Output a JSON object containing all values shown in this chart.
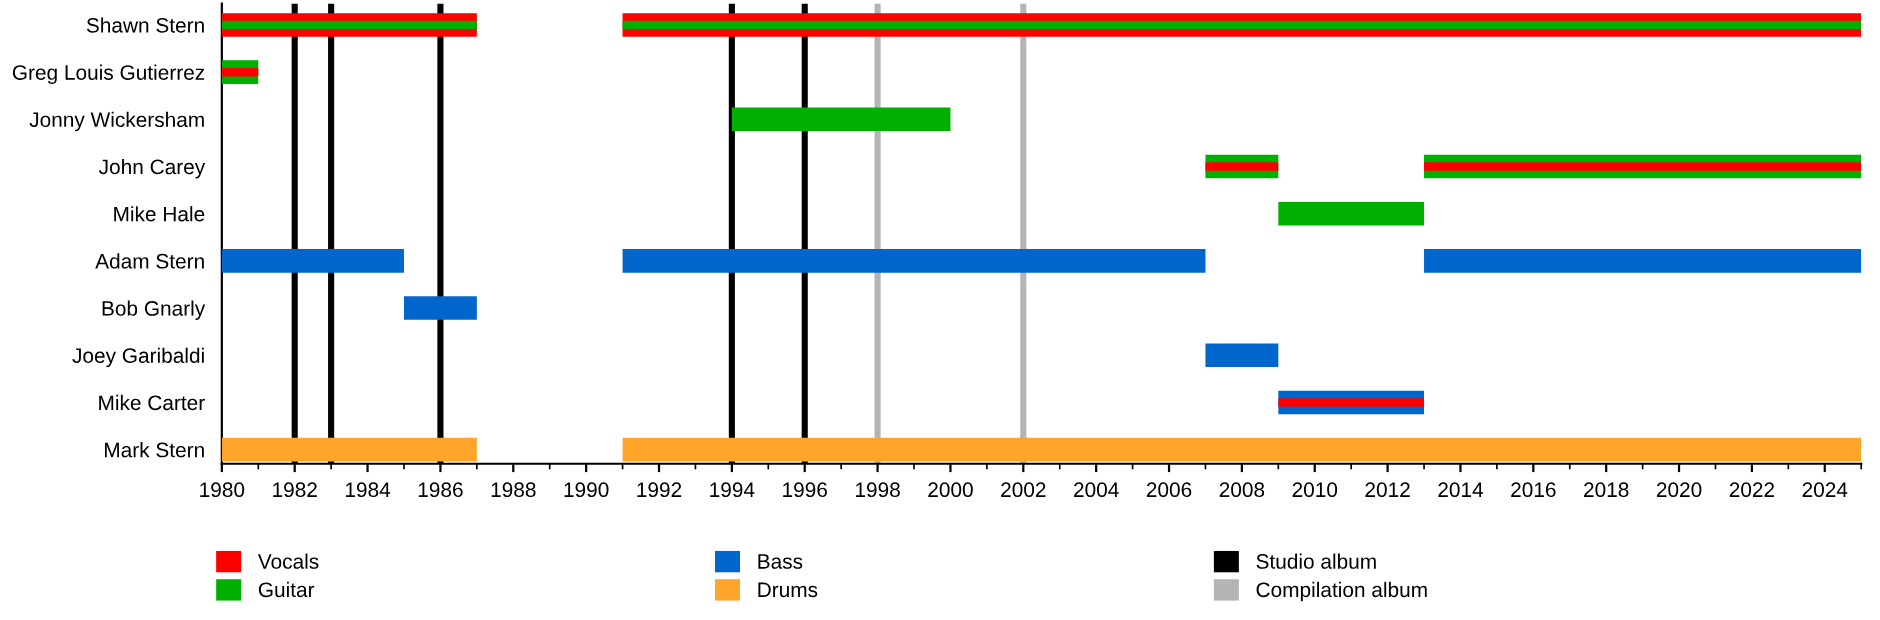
{
  "chart_data": {
    "type": "bar",
    "orientation": "horizontal",
    "categories": [
      "Shawn Stern",
      "Greg Louis Gutierrez",
      "Jonny Wickersham",
      "John Carey",
      "Mike Hale",
      "Adam Stern",
      "Bob Gnarly",
      "Joey Garibaldi",
      "Mike Carter",
      "Mark Stern"
    ],
    "series": [
      {
        "name": "Vocals",
        "color": "#ff0000",
        "base": [
          1980,
          null,
          null,
          null,
          null,
          null,
          null,
          null,
          null,
          null
        ],
        "values": [
          7,
          null,
          null,
          null,
          null,
          null,
          null,
          null,
          null,
          null
        ]
      },
      {
        "name": "Guitar",
        "color": "#00b000",
        "base": [
          1980,
          1980,
          1994,
          2007,
          2009,
          null,
          null,
          null,
          null,
          null
        ],
        "values": [
          7,
          1,
          6,
          2,
          4,
          null,
          null,
          null,
          null,
          null
        ]
      },
      {
        "color": "#ff0000",
        "base": [
          null,
          1980,
          null,
          2007,
          null,
          null,
          null,
          null,
          null,
          null
        ],
        "values": [
          null,
          1,
          null,
          2,
          null,
          null,
          null,
          null,
          null,
          null
        ]
      },
      {
        "name": "Bass",
        "color": "#0066cc",
        "base": [
          null,
          null,
          null,
          null,
          null,
          1980,
          1985,
          2007,
          2009,
          null
        ],
        "values": [
          null,
          null,
          null,
          null,
          null,
          5,
          2,
          2,
          4,
          null
        ]
      },
      {
        "color": "#ff0000",
        "base": [
          null,
          null,
          null,
          null,
          null,
          null,
          null,
          null,
          2009,
          null
        ],
        "values": [
          null,
          null,
          null,
          null,
          null,
          null,
          null,
          null,
          4,
          null
        ]
      },
      {
        "name": "Drums",
        "color": "#ffa52a",
        "base": [
          null,
          null,
          null,
          null,
          null,
          null,
          null,
          null,
          null,
          1980
        ],
        "values": [
          null,
          null,
          null,
          null,
          null,
          null,
          null,
          null,
          null,
          7
        ]
      },
      {
        "color": "#ff0000",
        "base": [
          1991,
          null,
          null,
          null,
          null,
          null,
          null,
          null,
          null,
          null
        ],
        "values": [
          34,
          null,
          null,
          null,
          null,
          null,
          null,
          null,
          null,
          null
        ]
      },
      {
        "color": "#00b000",
        "base": [
          1991,
          null,
          null,
          2013,
          null,
          null,
          null,
          null,
          null,
          null
        ],
        "values": [
          34,
          null,
          null,
          12,
          null,
          null,
          null,
          null,
          null,
          null
        ]
      },
      {
        "color": "#ff0000",
        "base": [
          null,
          null,
          null,
          2013,
          null,
          null,
          null,
          null,
          null,
          null
        ],
        "values": [
          null,
          null,
          null,
          12,
          null,
          null,
          null,
          null,
          null,
          null
        ]
      },
      {
        "color": "#0066cc",
        "base": [
          null,
          null,
          null,
          null,
          null,
          1991,
          null,
          null,
          null,
          null
        ],
        "values": [
          null,
          null,
          null,
          null,
          null,
          16,
          null,
          null,
          null,
          null
        ]
      },
      {
        "color": "#0066cc",
        "base": [
          null,
          null,
          null,
          null,
          null,
          2013,
          null,
          null,
          null,
          null
        ],
        "values": [
          null,
          null,
          null,
          null,
          null,
          12,
          null,
          null,
          null,
          null
        ]
      },
      {
        "color": "#ffa52a",
        "base": [
          null,
          null,
          null,
          null,
          null,
          null,
          null,
          null,
          null,
          1991
        ],
        "values": [
          null,
          null,
          null,
          null,
          null,
          null,
          null,
          null,
          null,
          34
        ]
      }
    ],
    "ref_lines": [
      {
        "axis": "x",
        "value": 1982,
        "label": "Studio album",
        "color": "#000000"
      },
      {
        "axis": "x",
        "value": 1983,
        "color": "#000000"
      },
      {
        "axis": "x",
        "value": 1986,
        "color": "#000000"
      },
      {
        "axis": "x",
        "value": 1994,
        "color": "#000000"
      },
      {
        "axis": "x",
        "value": 1996,
        "color": "#000000"
      },
      {
        "axis": "x",
        "value": 1998,
        "label": "Compilation album",
        "color": "#b4b4b4"
      },
      {
        "axis": "x",
        "value": 2002,
        "color": "#b4b4b4"
      }
    ],
    "xlim": [
      1980,
      2025
    ],
    "xticks": [
      1980,
      1982,
      1984,
      1986,
      1988,
      1990,
      1992,
      1994,
      1996,
      1998,
      2000,
      2002,
      2004,
      2006,
      2008,
      2010,
      2012,
      2014,
      2016,
      2018,
      2020,
      2022,
      2024
    ],
    "grid": false,
    "legend": "bottom"
  }
}
